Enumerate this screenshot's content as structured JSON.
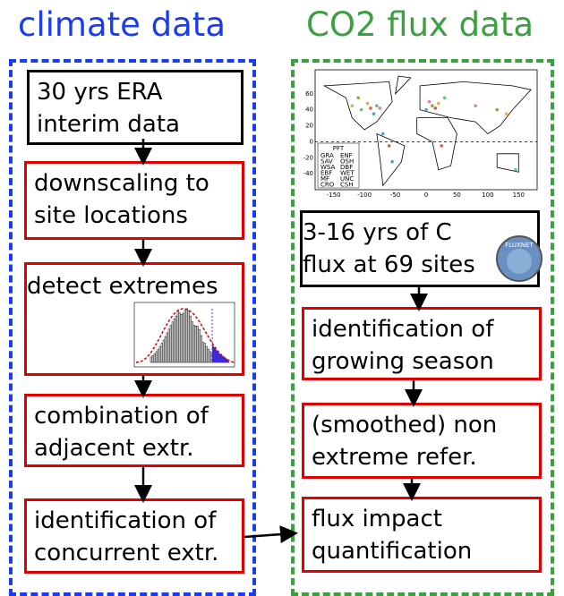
{
  "columns": [
    {
      "title": "climate data",
      "steps": [
        {
          "lines": [
            "30 yrs ERA",
            "interim data"
          ]
        },
        {
          "lines": [
            "downscaling to",
            "site locations"
          ]
        },
        {
          "lines": [
            "detect extremes"
          ]
        },
        {
          "lines": [
            "combination of",
            "adjacent extr."
          ]
        },
        {
          "lines": [
            "identification of",
            "concurrent extr."
          ]
        }
      ]
    },
    {
      "title": "CO2 flux data",
      "map": {
        "legend_title": "PFT",
        "legend": [
          "GRA",
          "SAV",
          "WSA",
          "EBF",
          "MF",
          "CRO",
          "ENF",
          "OSH",
          "DBF",
          "WET",
          "UNC",
          "CSH"
        ],
        "xticks": [
          -150,
          -100,
          -50,
          0,
          50,
          100,
          150
        ],
        "yticks": [
          60,
          40,
          20,
          0,
          -20,
          -40
        ]
      },
      "logo": "FLUXNET",
      "steps": [
        {
          "lines": [
            "3-16 yrs of C",
            "flux at 69 sites"
          ]
        },
        {
          "lines": [
            "identification of",
            "growing season"
          ]
        },
        {
          "lines": [
            "(smoothed) non",
            "extreme refer."
          ]
        },
        {
          "lines": [
            "flux impact",
            "quantification"
          ]
        }
      ]
    }
  ]
}
